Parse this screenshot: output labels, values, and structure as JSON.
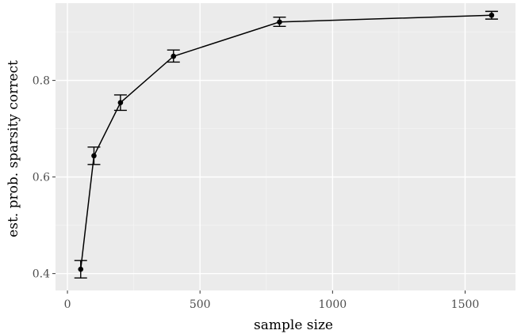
{
  "chart_data": {
    "type": "line",
    "xlabel": "sample size",
    "ylabel": "est. prob. sparsity correct",
    "xlim": [
      -45,
      1690
    ],
    "ylim": [
      0.365,
      0.96
    ],
    "x_ticks": [
      0,
      500,
      1000,
      1500
    ],
    "x_tick_labels": [
      "0",
      "500",
      "1000",
      "1500"
    ],
    "y_ticks": [
      0.4,
      0.6,
      0.8
    ],
    "y_tick_labels": [
      "0.4",
      "0.6",
      "0.8"
    ],
    "grid": true,
    "series": [
      {
        "x": [
          50,
          100,
          200,
          400,
          800,
          1600
        ],
        "y": [
          0.409,
          0.644,
          0.754,
          0.85,
          0.921,
          0.935
        ],
        "y_lower": [
          0.391,
          0.626,
          0.738,
          0.838,
          0.912,
          0.927
        ],
        "y_upper": [
          0.427,
          0.662,
          0.77,
          0.863,
          0.931,
          0.943
        ]
      }
    ],
    "colors": {
      "panel": "#ebebeb",
      "grid_major": "#ffffff",
      "grid_minor": "#f5f5f5",
      "line": "#000000",
      "tick_text": "#4d4d4d"
    }
  }
}
